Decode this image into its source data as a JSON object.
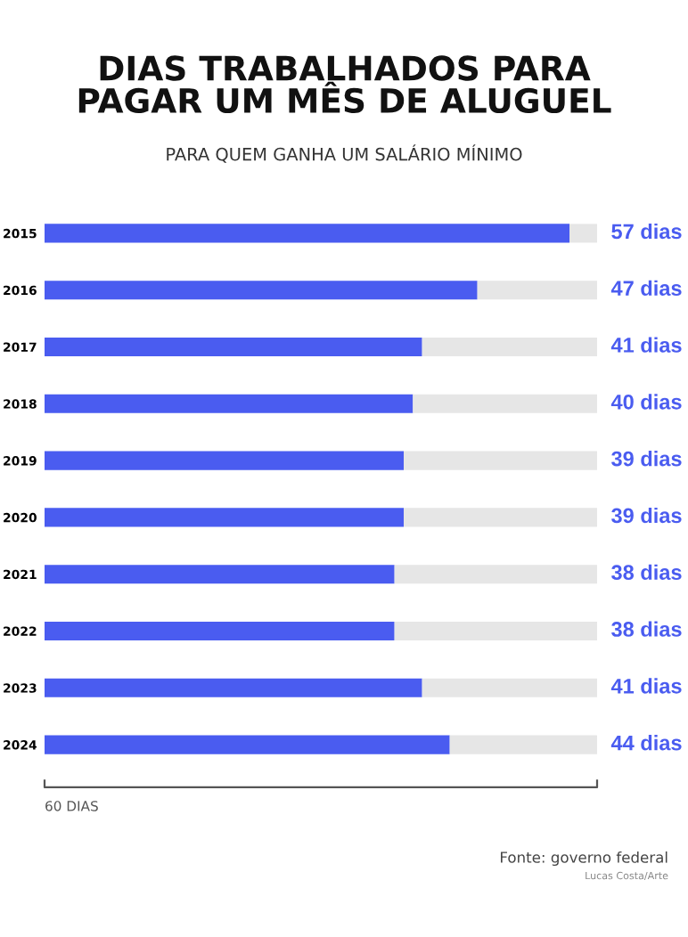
{
  "chart_data": {
    "type": "bar",
    "orientation": "horizontal",
    "stacked": true,
    "title": "DIAS TRABALHADOS PARA\nPAGAR UM MÊS DE ALUGUEL",
    "subtitle": "PARA QUEM GANHA UM SALÁRIO MÍNIMO",
    "categories": [
      "2015",
      "2016",
      "2017",
      "2018",
      "2019",
      "2020",
      "2021",
      "2022",
      "2023",
      "2024"
    ],
    "series": [
      {
        "color": "#4a5cf0",
        "values": [
          57,
          47,
          41,
          40,
          39,
          39,
          38,
          38,
          41,
          44
        ],
        "value_labels": [
          "57 dias",
          "47 dias",
          "41 dias",
          "40 dias",
          "39 dias",
          "39 dias",
          "38 dias",
          "38 dias",
          "41 dias",
          "44 dias"
        ]
      },
      {
        "color": "#e6e6e6",
        "values": [
          3,
          13,
          19,
          20,
          21,
          21,
          22,
          22,
          19,
          16
        ]
      }
    ],
    "xlim": [
      0,
      60
    ],
    "tick_labels": "y",
    "grid": false,
    "annotations": [
      "60 DIAS",
      "Fonte: governo federal",
      "Lucas Costa/Arte"
    ]
  }
}
